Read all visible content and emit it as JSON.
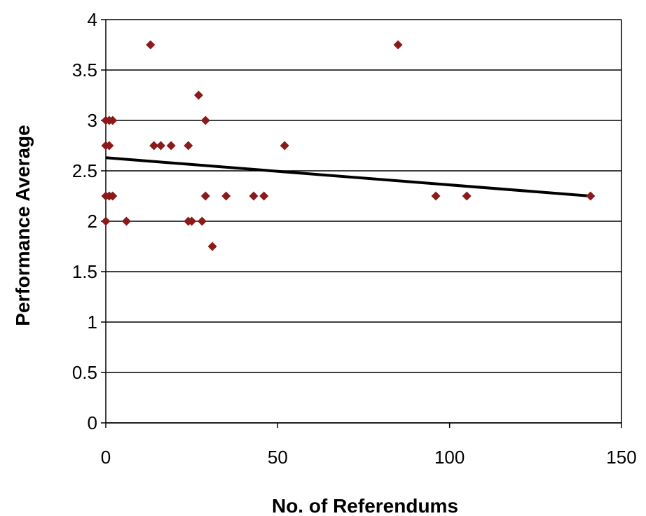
{
  "chart_data": {
    "type": "scatter",
    "title": "",
    "xlabel": "No. of Referendums",
    "ylabel": "Performance Average",
    "xlim": [
      0,
      150
    ],
    "ylim": [
      0,
      4
    ],
    "xticks": [
      0,
      50,
      100,
      150
    ],
    "yticks": [
      0,
      0.5,
      1,
      1.5,
      2,
      2.5,
      3,
      3.5,
      4
    ],
    "xtick_labels": [
      "0",
      "50",
      "100",
      "150"
    ],
    "ytick_labels": [
      "0",
      "0.5",
      "1",
      "1.5",
      "2",
      "2.5",
      "3",
      "3.5",
      "4"
    ],
    "grid": "horizontal",
    "legend": "none",
    "series": [
      {
        "marker": "diamond",
        "color": "#8b1a1a",
        "points": [
          {
            "x": 0,
            "y": 2.0
          },
          {
            "x": 0,
            "y": 2.25
          },
          {
            "x": 0,
            "y": 2.75
          },
          {
            "x": 0,
            "y": 3.0
          },
          {
            "x": 1,
            "y": 2.25
          },
          {
            "x": 1,
            "y": 2.75
          },
          {
            "x": 1,
            "y": 3.0
          },
          {
            "x": 2,
            "y": 2.25
          },
          {
            "x": 2,
            "y": 3.0
          },
          {
            "x": 6,
            "y": 2.0
          },
          {
            "x": 13,
            "y": 3.75
          },
          {
            "x": 14,
            "y": 2.75
          },
          {
            "x": 16,
            "y": 2.75
          },
          {
            "x": 19,
            "y": 2.75
          },
          {
            "x": 24,
            "y": 2.75
          },
          {
            "x": 24,
            "y": 2.0
          },
          {
            "x": 25,
            "y": 2.0
          },
          {
            "x": 27,
            "y": 3.25
          },
          {
            "x": 28,
            "y": 2.0
          },
          {
            "x": 29,
            "y": 3.0
          },
          {
            "x": 29,
            "y": 2.25
          },
          {
            "x": 31,
            "y": 1.75
          },
          {
            "x": 35,
            "y": 2.25
          },
          {
            "x": 43,
            "y": 2.25
          },
          {
            "x": 46,
            "y": 2.25
          },
          {
            "x": 52,
            "y": 2.75
          },
          {
            "x": 85,
            "y": 3.75
          },
          {
            "x": 96,
            "y": 2.25
          },
          {
            "x": 105,
            "y": 2.25
          },
          {
            "x": 141,
            "y": 2.25
          }
        ]
      }
    ],
    "trendline": {
      "type": "linear",
      "color": "#000000",
      "x": [
        0,
        141
      ],
      "y": [
        2.63,
        2.25
      ]
    }
  }
}
